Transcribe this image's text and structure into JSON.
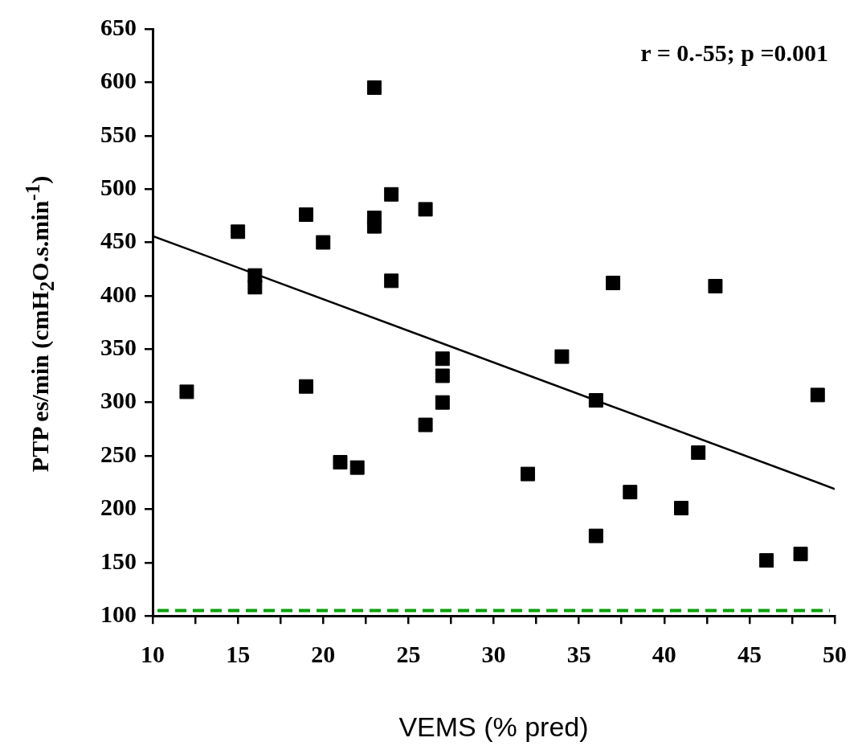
{
  "chart_data": {
    "type": "scatter",
    "xlabel": "VEMS (% pred)",
    "ylabel": "PTP es/min (cmH$_{2}$O.s.min$^{-1}$)",
    "annotations": [
      "r = 0.-55; p =0.001"
    ],
    "xlim": [
      10,
      50
    ],
    "xticks": [
      10,
      {
        "value": 12.5,
        "label": null
      },
      15,
      {
        "value": 17.5,
        "label": null
      },
      20,
      {
        "value": 22.5,
        "label": null
      },
      25,
      {
        "value": 27.5,
        "label": null
      },
      30,
      {
        "value": 32.5,
        "label": null
      },
      35,
      {
        "value": 37.5,
        "label": null
      },
      40,
      {
        "value": 42.5,
        "label": null
      },
      45,
      {
        "value": 47.5,
        "label": null
      },
      50
    ],
    "ylim": [
      100,
      650
    ],
    "yticks": [
      100,
      150,
      200,
      250,
      300,
      350,
      400,
      450,
      500,
      550,
      600,
      650
    ],
    "grid": false,
    "legend": false,
    "marker": "square",
    "series": [
      {
        "color": "#000000",
        "x": [
          12,
          15,
          16,
          16,
          19,
          19,
          20,
          21,
          22,
          23,
          23,
          23,
          24,
          24,
          26,
          26,
          27,
          27,
          27,
          32,
          34,
          36,
          36,
          37,
          38,
          41,
          42,
          43,
          46,
          48,
          49
        ],
        "values": [
          310,
          460,
          419,
          408,
          476,
          315,
          450,
          244,
          239,
          595,
          473,
          465,
          495,
          414,
          481,
          279,
          341,
          325,
          300,
          233,
          343,
          302,
          175,
          412,
          216,
          201,
          253,
          409,
          152,
          158,
          307
        ]
      },
      {
        "type": "line",
        "color": "#000000",
        "marker": "none",
        "x": [
          10,
          50
        ],
        "values": [
          456,
          219
        ]
      }
    ],
    "ref_lines": [
      {
        "axis": "y",
        "value": 105,
        "label": null,
        "color": "#00a000",
        "line_style": "dashed"
      }
    ]
  }
}
